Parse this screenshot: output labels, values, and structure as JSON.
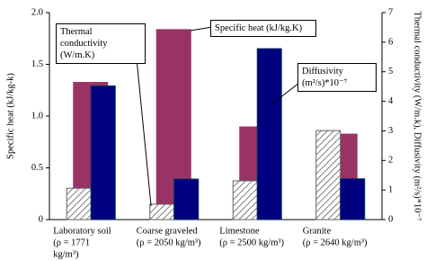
{
  "chart_data": {
    "type": "bar",
    "categories": [
      "Laboratory soil",
      "Coarse graveled",
      "Limestone",
      "Granite"
    ],
    "category_notes": [
      [
        "(ρ = 1771",
        "kg/m³)"
      ],
      [
        "(ρ = 2050 kg/m³)"
      ],
      [
        "(ρ = 2500 kg/m³)"
      ],
      [
        "(ρ = 2640 kg/m³)"
      ]
    ],
    "ylabel": "Specific heat (kJ/kg-k)",
    "y2label": "Thermal conductivity (W/m.k), Diffusivity (m²/s)*10⁻⁷",
    "ylim": [
      0,
      2.0
    ],
    "yticks": [
      0,
      0.5,
      {
        "value": 1.0,
        "label": "1.0"
      },
      1.5,
      {
        "value": 2.0,
        "label": "2.0"
      }
    ],
    "y2lim": [
      0,
      7
    ],
    "y2ticks": [
      0,
      1,
      2,
      3,
      4,
      5,
      6,
      7
    ],
    "series": [
      {
        "name": "Thermal conductivity (W/m.K)",
        "axis": "y2",
        "pattern": "hatch",
        "color": "#606060",
        "values": [
          1.06,
          0.52,
          1.31,
          3.01
        ]
      },
      {
        "name": "Specific heat (kJ/kg.K)",
        "color": "#993366",
        "values": [
          1.33,
          1.84,
          0.9,
          0.83
        ]
      },
      {
        "name": "Diffusivity (m²/s)*10⁻⁷",
        "axis": "y2",
        "color": "#000080",
        "values": [
          4.52,
          1.37,
          5.78,
          1.38
        ]
      }
    ]
  }
}
